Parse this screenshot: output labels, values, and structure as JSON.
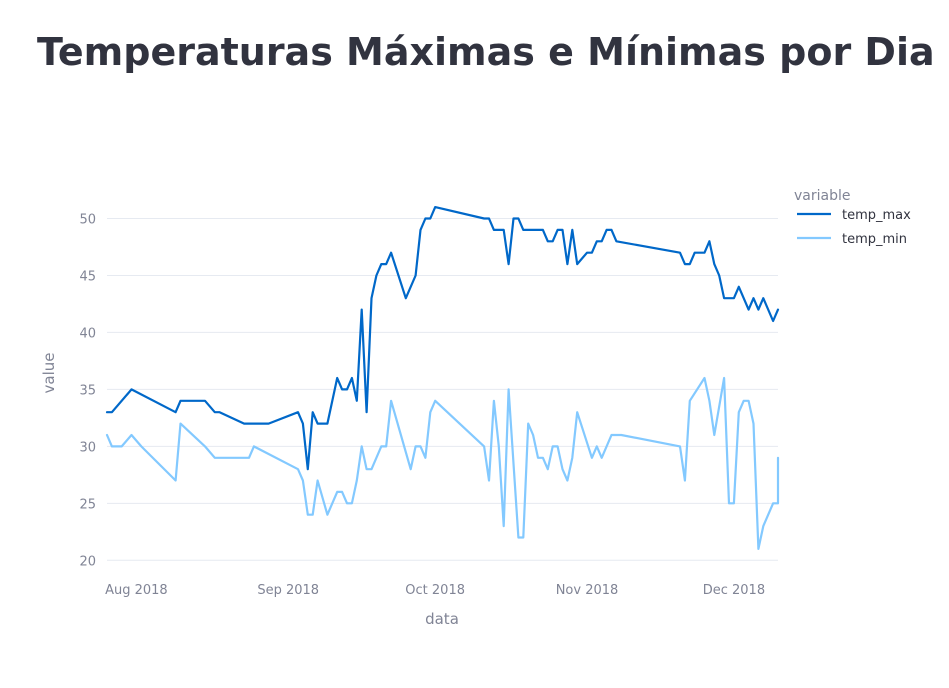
{
  "page": {
    "title": "Temperaturas Máximas e Mínimas por Dia"
  },
  "chart_data": {
    "type": "line",
    "xlabel": "data",
    "ylabel": "value",
    "legend_title": "variable",
    "legend_position": "top-right",
    "grid": true,
    "x_ticks": [
      {
        "date": "2018-08-01",
        "label": "Aug 2018"
      },
      {
        "date": "2018-09-01",
        "label": "Sep 2018"
      },
      {
        "date": "2018-10-01",
        "label": "Oct 2018"
      },
      {
        "date": "2018-11-01",
        "label": "Nov 2018"
      },
      {
        "date": "2018-12-01",
        "label": "Dec 2018"
      }
    ],
    "y_ticks": [
      20,
      25,
      30,
      35,
      40,
      45,
      50
    ],
    "xlim": [
      "2018-07-26",
      "2018-12-10"
    ],
    "ylim": [
      19.5,
      52.5
    ],
    "series": [
      {
        "name": "temp_max",
        "color": "#0068c9",
        "points": [
          [
            "2018-07-26",
            33
          ],
          [
            "2018-07-27",
            33
          ],
          [
            "2018-07-31",
            35
          ],
          [
            "2018-08-09",
            33
          ],
          [
            "2018-08-10",
            34
          ],
          [
            "2018-08-15",
            34
          ],
          [
            "2018-08-17",
            33
          ],
          [
            "2018-08-18",
            33
          ],
          [
            "2018-08-23",
            32
          ],
          [
            "2018-08-28",
            32
          ],
          [
            "2018-09-03",
            33
          ],
          [
            "2018-09-04",
            32
          ],
          [
            "2018-09-05",
            28
          ],
          [
            "2018-09-06",
            33
          ],
          [
            "2018-09-07",
            32
          ],
          [
            "2018-09-09",
            32
          ],
          [
            "2018-09-11",
            36
          ],
          [
            "2018-09-12",
            35
          ],
          [
            "2018-09-13",
            35
          ],
          [
            "2018-09-14",
            36
          ],
          [
            "2018-09-15",
            34
          ],
          [
            "2018-09-16",
            42
          ],
          [
            "2018-09-17",
            33
          ],
          [
            "2018-09-18",
            43
          ],
          [
            "2018-09-19",
            45
          ],
          [
            "2018-09-20",
            46
          ],
          [
            "2018-09-21",
            46
          ],
          [
            "2018-09-22",
            47
          ],
          [
            "2018-09-25",
            43
          ],
          [
            "2018-09-27",
            45
          ],
          [
            "2018-09-28",
            49
          ],
          [
            "2018-09-29",
            50
          ],
          [
            "2018-09-30",
            50
          ],
          [
            "2018-10-01",
            51
          ],
          [
            "2018-10-11",
            50
          ],
          [
            "2018-10-12",
            50
          ],
          [
            "2018-10-13",
            49
          ],
          [
            "2018-10-15",
            49
          ],
          [
            "2018-10-16",
            46
          ],
          [
            "2018-10-17",
            50
          ],
          [
            "2018-10-18",
            50
          ],
          [
            "2018-10-19",
            49
          ],
          [
            "2018-10-23",
            49
          ],
          [
            "2018-10-24",
            48
          ],
          [
            "2018-10-25",
            48
          ],
          [
            "2018-10-26",
            49
          ],
          [
            "2018-10-27",
            49
          ],
          [
            "2018-10-28",
            46
          ],
          [
            "2018-10-29",
            49
          ],
          [
            "2018-10-30",
            46
          ],
          [
            "2018-11-01",
            47
          ],
          [
            "2018-11-02",
            47
          ],
          [
            "2018-11-03",
            48
          ],
          [
            "2018-11-04",
            48
          ],
          [
            "2018-11-05",
            49
          ],
          [
            "2018-11-06",
            49
          ],
          [
            "2018-11-07",
            48
          ],
          [
            "2018-11-20",
            47
          ],
          [
            "2018-11-21",
            46
          ],
          [
            "2018-11-22",
            46
          ],
          [
            "2018-11-23",
            47
          ],
          [
            "2018-11-25",
            47
          ],
          [
            "2018-11-26",
            48
          ],
          [
            "2018-11-27",
            46
          ],
          [
            "2018-11-28",
            45
          ],
          [
            "2018-11-29",
            43
          ],
          [
            "2018-12-01",
            43
          ],
          [
            "2018-12-02",
            44
          ],
          [
            "2018-12-04",
            42
          ],
          [
            "2018-12-05",
            43
          ],
          [
            "2018-12-06",
            42
          ],
          [
            "2018-12-07",
            43
          ],
          [
            "2018-12-09",
            41
          ],
          [
            "2018-12-10",
            42
          ]
        ]
      },
      {
        "name": "temp_min",
        "color": "#83c9ff",
        "points": [
          [
            "2018-07-26",
            31
          ],
          [
            "2018-07-27",
            30
          ],
          [
            "2018-07-29",
            30
          ],
          [
            "2018-07-31",
            31
          ],
          [
            "2018-08-02",
            30
          ],
          [
            "2018-08-09",
            27
          ],
          [
            "2018-08-10",
            32
          ],
          [
            "2018-08-15",
            30
          ],
          [
            "2018-08-17",
            29
          ],
          [
            "2018-08-20",
            29
          ],
          [
            "2018-08-24",
            29
          ],
          [
            "2018-08-25",
            30
          ],
          [
            "2018-09-03",
            28
          ],
          [
            "2018-09-04",
            27
          ],
          [
            "2018-09-05",
            24
          ],
          [
            "2018-09-06",
            24
          ],
          [
            "2018-09-07",
            27
          ],
          [
            "2018-09-09",
            24
          ],
          [
            "2018-09-11",
            26
          ],
          [
            "2018-09-12",
            26
          ],
          [
            "2018-09-13",
            25
          ],
          [
            "2018-09-14",
            25
          ],
          [
            "2018-09-15",
            27
          ],
          [
            "2018-09-16",
            30
          ],
          [
            "2018-09-17",
            28
          ],
          [
            "2018-09-18",
            28
          ],
          [
            "2018-09-20",
            30
          ],
          [
            "2018-09-21",
            30
          ],
          [
            "2018-09-22",
            34
          ],
          [
            "2018-09-26",
            28
          ],
          [
            "2018-09-27",
            30
          ],
          [
            "2018-09-28",
            30
          ],
          [
            "2018-09-29",
            29
          ],
          [
            "2018-09-30",
            33
          ],
          [
            "2018-10-01",
            34
          ],
          [
            "2018-10-11",
            30
          ],
          [
            "2018-10-12",
            27
          ],
          [
            "2018-10-13",
            34
          ],
          [
            "2018-10-14",
            30
          ],
          [
            "2018-10-15",
            23
          ],
          [
            "2018-10-16",
            35
          ],
          [
            "2018-10-18",
            22
          ],
          [
            "2018-10-19",
            22
          ],
          [
            "2018-10-20",
            32
          ],
          [
            "2018-10-21",
            31
          ],
          [
            "2018-10-22",
            29
          ],
          [
            "2018-10-23",
            29
          ],
          [
            "2018-10-24",
            28
          ],
          [
            "2018-10-25",
            30
          ],
          [
            "2018-10-26",
            30
          ],
          [
            "2018-10-27",
            28
          ],
          [
            "2018-10-28",
            27
          ],
          [
            "2018-10-29",
            29
          ],
          [
            "2018-10-30",
            33
          ],
          [
            "2018-11-02",
            29
          ],
          [
            "2018-11-03",
            30
          ],
          [
            "2018-11-04",
            29
          ],
          [
            "2018-11-06",
            31
          ],
          [
            "2018-11-08",
            31
          ],
          [
            "2018-11-20",
            30
          ],
          [
            "2018-11-21",
            27
          ],
          [
            "2018-11-22",
            34
          ],
          [
            "2018-11-25",
            36
          ],
          [
            "2018-11-26",
            34
          ],
          [
            "2018-11-27",
            31
          ],
          [
            "2018-11-29",
            36
          ],
          [
            "2018-11-30",
            25
          ],
          [
            "2018-12-01",
            25
          ],
          [
            "2018-12-02",
            33
          ],
          [
            "2018-12-03",
            34
          ],
          [
            "2018-12-04",
            34
          ],
          [
            "2018-12-05",
            32
          ],
          [
            "2018-12-06",
            21
          ],
          [
            "2018-12-07",
            23
          ],
          [
            "2018-12-09",
            25
          ],
          [
            "2018-12-10",
            25
          ],
          [
            "2018-12-11",
            29
          ]
        ]
      }
    ]
  }
}
